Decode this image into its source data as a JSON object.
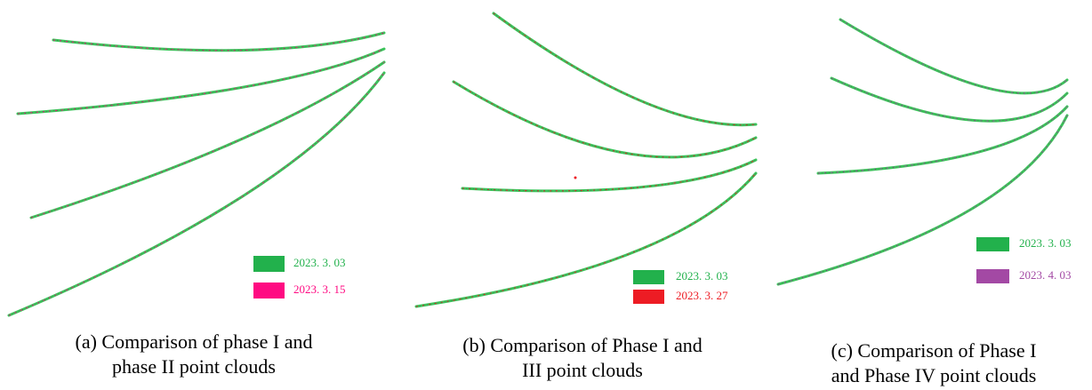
{
  "panels": [
    {
      "legend": [
        {
          "label": "2023. 3. 03",
          "color": "#22b14c"
        },
        {
          "label": "2023. 3. 15",
          "color": "#ff0a82"
        }
      ],
      "caption": [
        "(a) Comparison of phase I and",
        "phase II point clouds"
      ]
    },
    {
      "legend": [
        {
          "label": "2023. 3. 03",
          "color": "#22b14c"
        },
        {
          "label": "2023. 3. 27",
          "color": "#ed1c24"
        }
      ],
      "caption": [
        "(b) Comparison of Phase I and",
        "III point clouds"
      ]
    },
    {
      "legend": [
        {
          "label": "2023. 3. 03",
          "color": "#22b14c"
        },
        {
          "label": "2023. 4. 03",
          "color": "#a349a4"
        }
      ],
      "caption": [
        "(c) Comparison of Phase I",
        "and Phase IV point clouds"
      ]
    }
  ]
}
